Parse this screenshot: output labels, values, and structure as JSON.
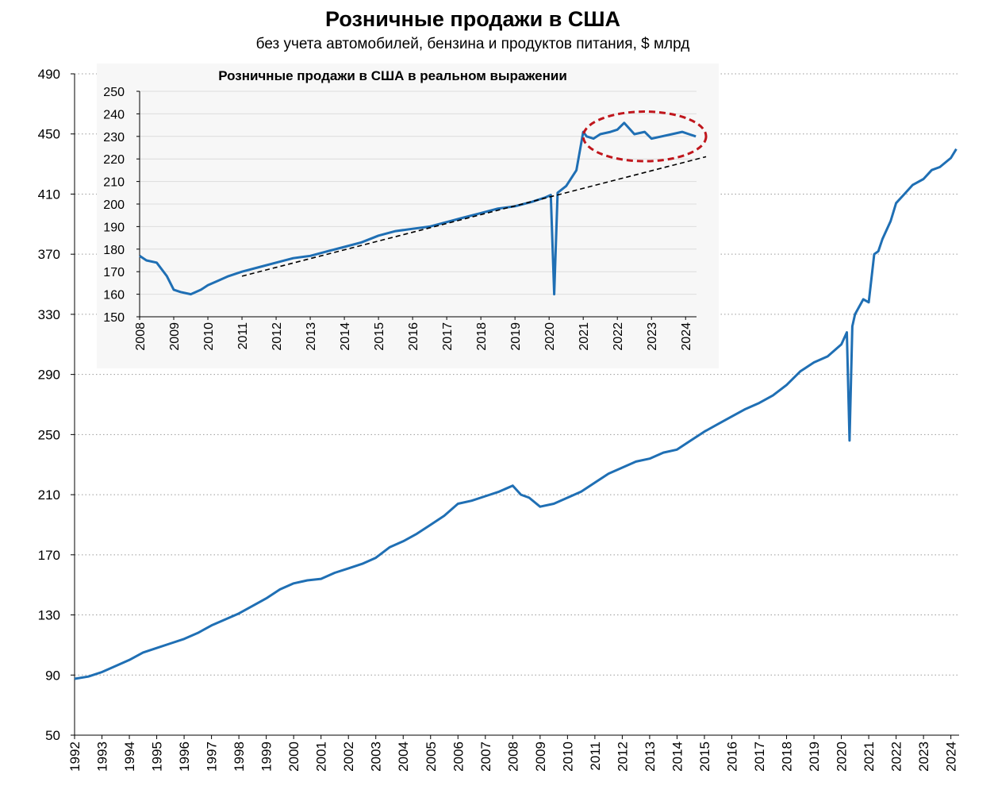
{
  "chart_data": [
    {
      "type": "line",
      "title": "Розничные продажи в США",
      "subtitle": "без учета автомобилей, бензина и продуктов питания,  $ млрд",
      "xlabel": "",
      "ylabel": "",
      "ylim": [
        50,
        490
      ],
      "y_ticks": [
        "490",
        "450",
        "410",
        "370",
        "330",
        "290",
        "250",
        "210",
        "170",
        "130",
        "90",
        "50"
      ],
      "x_ticks": [
        "1992",
        "1993",
        "1994",
        "1995",
        "1996",
        "1997",
        "1998",
        "1999",
        "2000",
        "2001",
        "2002",
        "2003",
        "2004",
        "2005",
        "2006",
        "2007",
        "2008",
        "2009",
        "2010",
        "2011",
        "2012",
        "2013",
        "2014",
        "2015",
        "2016",
        "2017",
        "2018",
        "2019",
        "2020",
        "2021",
        "2022",
        "2023",
        "2024"
      ],
      "grid": "horizontal dotted",
      "color": "#1f6fb4",
      "series": [
        {
          "x": [
            1992.0,
            1992.5,
            1993.0,
            1993.5,
            1994.0,
            1994.5,
            1995.0,
            1995.5,
            1996.0,
            1996.5,
            1997.0,
            1997.5,
            1998.0,
            1998.5,
            1999.0,
            1999.5,
            2000.0,
            2000.5,
            2001.0,
            2001.5,
            2002.0,
            2002.5,
            2003.0,
            2003.5,
            2004.0,
            2004.5,
            2005.0,
            2005.5,
            2006.0,
            2006.5,
            2007.0,
            2007.5,
            2008.0,
            2008.3,
            2008.6,
            2009.0,
            2009.5,
            2010.0,
            2010.5,
            2011.0,
            2011.5,
            2012.0,
            2012.5,
            2013.0,
            2013.5,
            2014.0,
            2014.5,
            2015.0,
            2015.5,
            2016.0,
            2016.5,
            2017.0,
            2017.5,
            2018.0,
            2018.5,
            2019.0,
            2019.5,
            2020.0,
            2020.2,
            2020.3,
            2020.4,
            2020.5,
            2020.8,
            2021.0,
            2021.2,
            2021.35,
            2021.5,
            2021.8,
            2022.0,
            2022.3,
            2022.6,
            2023.0,
            2023.3,
            2023.6,
            2024.0,
            2024.2
          ],
          "values": [
            87.5,
            89,
            92,
            96,
            100,
            105,
            108,
            111,
            114,
            118,
            123,
            127,
            131,
            136,
            141,
            147,
            151,
            153,
            154,
            158,
            161,
            164,
            168,
            175,
            179,
            184,
            190,
            196,
            204,
            206,
            209,
            212,
            216,
            210,
            208,
            202,
            204,
            208,
            212,
            218,
            224,
            228,
            232,
            234,
            238,
            240,
            246,
            252,
            257,
            262,
            267,
            271,
            276,
            283,
            292,
            298,
            302,
            310,
            318,
            246,
            322,
            330,
            340,
            338,
            370,
            372,
            380,
            392,
            404,
            410,
            416,
            420,
            426,
            428,
            434,
            440
          ]
        }
      ]
    },
    {
      "type": "line",
      "title": "Розничные продажи в США в реальном выражении",
      "xlabel": "",
      "ylabel": "",
      "ylim": [
        150,
        250
      ],
      "y_ticks": [
        "250",
        "240",
        "230",
        "220",
        "210",
        "200",
        "190",
        "180",
        "170",
        "160",
        "150"
      ],
      "x_ticks": [
        "2008",
        "2009",
        "2010",
        "2011",
        "2012",
        "2013",
        "2014",
        "2015",
        "2016",
        "2017",
        "2018",
        "2019",
        "2020",
        "2021",
        "2022",
        "2023",
        "2024"
      ],
      "grid": "horizontal",
      "color": "#1f6fb4",
      "series": [
        {
          "x": [
            2008.0,
            2008.2,
            2008.5,
            2008.8,
            2009.0,
            2009.2,
            2009.5,
            2009.8,
            2010.0,
            2010.3,
            2010.6,
            2011.0,
            2011.5,
            2012.0,
            2012.5,
            2013.0,
            2013.5,
            2014.0,
            2014.5,
            2015.0,
            2015.5,
            2016.0,
            2016.5,
            2017.0,
            2017.5,
            2018.0,
            2018.5,
            2019.0,
            2019.5,
            2019.9,
            2020.05,
            2020.15,
            2020.25,
            2020.5,
            2020.8,
            2021.0,
            2021.1,
            2021.3,
            2021.5,
            2021.8,
            2022.0,
            2022.2,
            2022.5,
            2022.8,
            2023.0,
            2023.3,
            2023.6,
            2023.9,
            2024.1,
            2024.3
          ],
          "values": [
            177,
            175,
            174,
            168,
            162,
            161,
            160,
            162,
            164,
            166,
            168,
            170,
            172,
            174,
            176,
            177,
            179,
            181,
            183,
            186,
            188,
            189,
            190,
            192,
            194,
            196,
            198,
            199,
            201,
            203,
            204,
            160,
            205,
            208,
            215,
            232,
            230,
            229,
            231,
            232,
            233,
            236,
            231,
            232,
            229,
            230,
            231,
            232,
            231,
            230
          ]
        }
      ],
      "annotations": {
        "trend_line": {
          "x": [
            2011.0,
            2024.6
          ],
          "values": [
            168,
            221
          ],
          "style": "black dashed"
        },
        "highlight": {
          "shape": "ellipse",
          "color": "#c0161c",
          "style": "dashed",
          "x_range": [
            2021.0,
            2024.6
          ],
          "y_range": [
            219,
            241
          ]
        }
      }
    }
  ]
}
